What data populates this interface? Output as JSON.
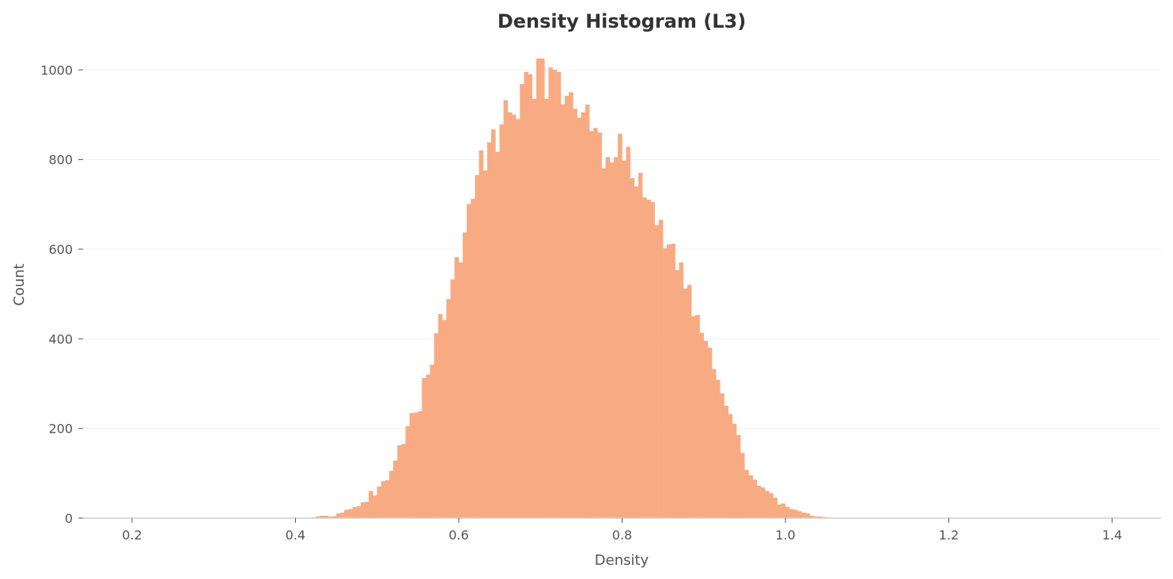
{
  "chart_data": {
    "type": "bar",
    "title": "Density Histogram (L3)",
    "xlabel": "Density",
    "ylabel": "Count",
    "xlim": [
      0.14,
      1.46
    ],
    "ylim": [
      0,
      1050
    ],
    "x_ticks": [
      {
        "value": 0.2,
        "label": "0.2"
      },
      {
        "value": 0.4,
        "label": "0.4"
      },
      {
        "value": 0.6,
        "label": "0.6"
      },
      {
        "value": 0.8,
        "label": "0.8"
      },
      {
        "value": 1.0,
        "label": "1.0"
      },
      {
        "value": 1.2,
        "label": "1.2"
      },
      {
        "value": 1.4,
        "label": "1.4"
      }
    ],
    "y_ticks": [
      {
        "value": 0,
        "label": "0"
      },
      {
        "value": 200,
        "label": "200"
      },
      {
        "value": 400,
        "label": "400"
      },
      {
        "value": 600,
        "label": "600"
      },
      {
        "value": 800,
        "label": "800"
      },
      {
        "value": 1000,
        "label": "1000"
      }
    ],
    "grid": "horizontal",
    "bar_color": "#f8ab82",
    "bin_start": 0.16,
    "bin_width": 0.005,
    "values": [
      0,
      0,
      0,
      0,
      0,
      0,
      0,
      0,
      0,
      0,
      0,
      0,
      0,
      0,
      0,
      0,
      0,
      0,
      0,
      0,
      0,
      0,
      0,
      0,
      0,
      0,
      0,
      0,
      0,
      0,
      0,
      0,
      0,
      0,
      0,
      0,
      0,
      0,
      0,
      0,
      0,
      0,
      0,
      0,
      0,
      0,
      0,
      0,
      0,
      0,
      0,
      0,
      1,
      3,
      5,
      5,
      3,
      4,
      10,
      12,
      18,
      20,
      24,
      26,
      35,
      36,
      60,
      50,
      70,
      82,
      84,
      105,
      128,
      162,
      165,
      205,
      234,
      235,
      238,
      312,
      320,
      342,
      412,
      455,
      442,
      488,
      532,
      582,
      570,
      637,
      700,
      712,
      765,
      820,
      775,
      838,
      867,
      817,
      878,
      932,
      905,
      900,
      890,
      968,
      995,
      990,
      935,
      1025,
      1025,
      935,
      1005,
      1000,
      995,
      923,
      942,
      950,
      913,
      893,
      905,
      922,
      863,
      870,
      860,
      780,
      805,
      793,
      805,
      857,
      797,
      828,
      758,
      740,
      770,
      715,
      710,
      705,
      653,
      665,
      602,
      610,
      612,
      553,
      570,
      512,
      520,
      450,
      453,
      413,
      395,
      380,
      332,
      308,
      278,
      250,
      232,
      210,
      185,
      145,
      107,
      95,
      85,
      72,
      68,
      60,
      55,
      45,
      30,
      32,
      25,
      20,
      18,
      15,
      12,
      10,
      5,
      3,
      3,
      2,
      1,
      0,
      0,
      0,
      0,
      0,
      0,
      0,
      0,
      0,
      0,
      0,
      0,
      0,
      0,
      0,
      0,
      0,
      0,
      0,
      0,
      0,
      0,
      0,
      0,
      0,
      0,
      0,
      0,
      0,
      0,
      0,
      0,
      0,
      0,
      0,
      0,
      0,
      0,
      0,
      0,
      0,
      0,
      0,
      0,
      0,
      0,
      0,
      0,
      0,
      0,
      0,
      0,
      0,
      0,
      0,
      0,
      0,
      0,
      0,
      0,
      0
    ]
  }
}
